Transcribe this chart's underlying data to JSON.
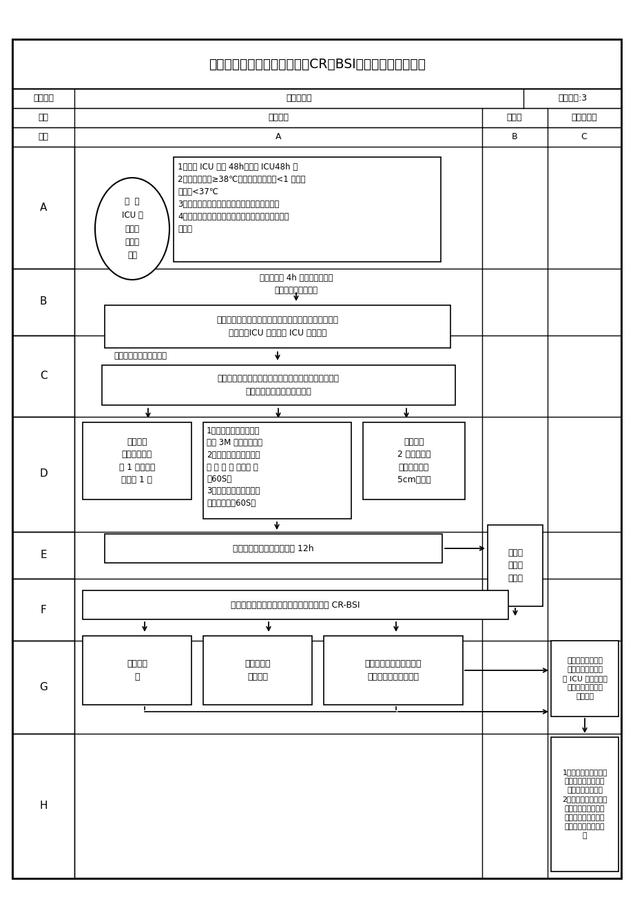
{
  "title": "中心静脉导管相关血液感染（CR－BSI）监测标准操作流程",
  "r1c1": "实施部门",
  "r1c2": "感染管理科",
  "r1c3": "流程编号:3",
  "r2c1": "单元",
  "r2c2": "临床科室",
  "r2c3": "检验科",
  "r2c4": "感染管理科",
  "r3c1": "节点",
  "r3c2": "A",
  "r3c3": "B",
  "r3c4": "C",
  "ellipse_text": "住  进\nICU 有\n中心静\n脉插管\n患者",
  "box_A": "1、住进 ICU 超过 48h，转出 ICU48h 内\n2、发热，体温≥38℃，寒颤或低血压，<1 岁的患\n者体温<37℃\n3、静脉穿刺部位有脓液、渗出物、弥漫性红斑\n4、沿导管皮下走行部位出现疼痛性红斑（排除理化\n因素）",
  "note_A": "管床护士每 4h 观察穿刺部位，\n若发现以上疑似情况",
  "box_B": "通知医院感染监控专职人员和主管医生，提示医生填写\n申请单，ICU 护士填写 ICU 患者日志",
  "note_B": "在患者寒颤或发热时采血",
  "box_C": "医师首先判断导管是否仍有保留的必要性。按导管保留\n与否分别采用不同的送检方法",
  "box_D1": "保留导管\n外周经脉血静\n脉 1 份；中心\n静脉血 1 份",
  "box_D2": "1、手清洁：无明显污染\n使用 3M 速干手消毒液\n2、血培养瓶口消毒：碘\n伏 消 毒 一 遍，待 干\n（60S）\n3、抽血部位皮肤消毒：\n碘伏，待干（60S）",
  "box_D3": "拔除导管\n2 个外周静脉\n血、导管尖端\n5cm或整根",
  "box_E": "送化验室，室温放置不超过 12h",
  "box_lab": "实验室\n提供培\n养结果",
  "box_F": "临床医师根据微生物学监测结果判断是否为 CR-BSI",
  "box_G1": "阴性：报\n告",
  "box_G2": "病程记录，\n护理记录",
  "box_G3": "阳性：涂片，镜检报告，\n提供最终药敏鉴定报告",
  "box_GC": "医院感染监控专职\n人员每天安排时间\n到 ICU 收集数据，\n同时观察与感染有\n关的因素",
  "box_HC": "1、每天由医院感染监\n控专职人员记录数据\n并对数据进行整理\n2、统计中心静脉导管\n使用率及其相关血液\n感染率，并与科室进\n行交流，给予合理建\n议",
  "rows": [
    "A",
    "B",
    "C",
    "D",
    "E",
    "F",
    "G",
    "H"
  ]
}
